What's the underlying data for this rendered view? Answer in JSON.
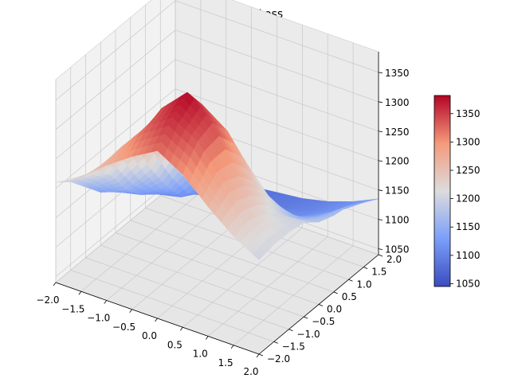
{
  "chart_data": {
    "type": "surface",
    "title": "Total_Loss",
    "xlabel": "",
    "ylabel": "",
    "zlabel": "",
    "x_ticks": [
      "−2.0",
      "−1.5",
      "−1.0",
      "−0.5",
      "0.0",
      "0.5",
      "1.0",
      "1.5",
      "2.0"
    ],
    "y_ticks": [
      "−2.0",
      "−1.5",
      "−1.0",
      "−0.5",
      "0.0",
      "0.5",
      "1.0",
      "1.5",
      "2.0"
    ],
    "z_ticks": [
      "1050",
      "1100",
      "1150",
      "1200",
      "1250",
      "1300",
      "1350"
    ],
    "xlim": [
      -2.0,
      2.0
    ],
    "ylim": [
      -2.0,
      2.0
    ],
    "zlim": [
      1040,
      1385
    ],
    "colormap": "coolwarm",
    "colorbar": {
      "min": 1045,
      "max": 1382,
      "ticks": [
        "1050",
        "1100",
        "1150",
        "1200",
        "1250",
        "1300",
        "1350"
      ]
    },
    "grid": true,
    "surface": {
      "x": [
        -2.0,
        -1.5,
        -1.0,
        -0.5,
        0.0,
        0.5,
        1.0,
        1.5,
        2.0
      ],
      "y": [
        -2.0,
        -1.5,
        -1.0,
        -0.5,
        0.0,
        0.5,
        1.0,
        1.5,
        2.0
      ],
      "z": [
        [
          1210,
          1235,
          1270,
          1300,
          1325,
          1300,
          1260,
          1225,
          1200
        ],
        [
          1190,
          1225,
          1280,
          1330,
          1360,
          1335,
          1280,
          1230,
          1205
        ],
        [
          1160,
          1195,
          1260,
          1340,
          1382,
          1345,
          1270,
          1220,
          1205
        ],
        [
          1130,
          1150,
          1200,
          1290,
          1340,
          1310,
          1240,
          1200,
          1200
        ],
        [
          1110,
          1120,
          1150,
          1215,
          1270,
          1245,
          1195,
          1170,
          1180
        ],
        [
          1095,
          1100,
          1110,
          1150,
          1195,
          1170,
          1140,
          1150,
          1170
        ],
        [
          1085,
          1090,
          1095,
          1100,
          1115,
          1110,
          1115,
          1135,
          1165
        ],
        [
          1070,
          1080,
          1085,
          1090,
          1090,
          1095,
          1105,
          1120,
          1150
        ],
        [
          1045,
          1060,
          1075,
          1080,
          1085,
          1090,
          1100,
          1115,
          1135
        ]
      ]
    }
  }
}
